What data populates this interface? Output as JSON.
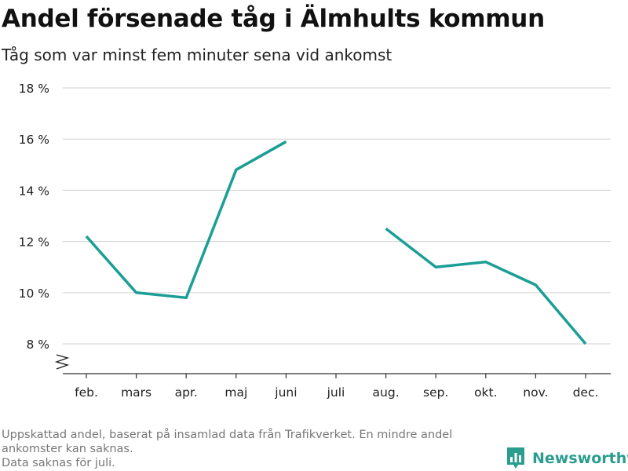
{
  "title": "Andel försenade tåg i Älmhults kommun",
  "subtitle": "Tåg som var minst fem minuter sena vid ankomst",
  "footnote": {
    "line1": "Uppskattad andel, baserat på insamlad data från Trafikverket. En mindre andel",
    "line2": "ankomster kan saknas.",
    "line3": "Data saknas för juli."
  },
  "brand": {
    "name": "Newsworthy",
    "color": "#2a9d8f",
    "icon": "bar-chart-icon"
  },
  "chart_data": {
    "type": "line",
    "categories": [
      "feb.",
      "mars",
      "apr.",
      "maj",
      "juni",
      "juli",
      "aug.",
      "sep.",
      "okt.",
      "nov.",
      "dec."
    ],
    "series": [
      {
        "values": [
          12.2,
          10.0,
          9.8,
          14.8,
          15.9,
          null,
          12.5,
          11.0,
          11.2,
          10.3,
          8.0
        ],
        "color": "#1a9e95"
      }
    ],
    "yticks": [
      8,
      10,
      12,
      14,
      16,
      18
    ],
    "ytick_labels": [
      "8 %",
      "10 %",
      "12 %",
      "14 %",
      "16 %",
      "18 %"
    ],
    "ylim": [
      8,
      18
    ],
    "axis_break": true,
    "grid": true,
    "legend": "none"
  }
}
